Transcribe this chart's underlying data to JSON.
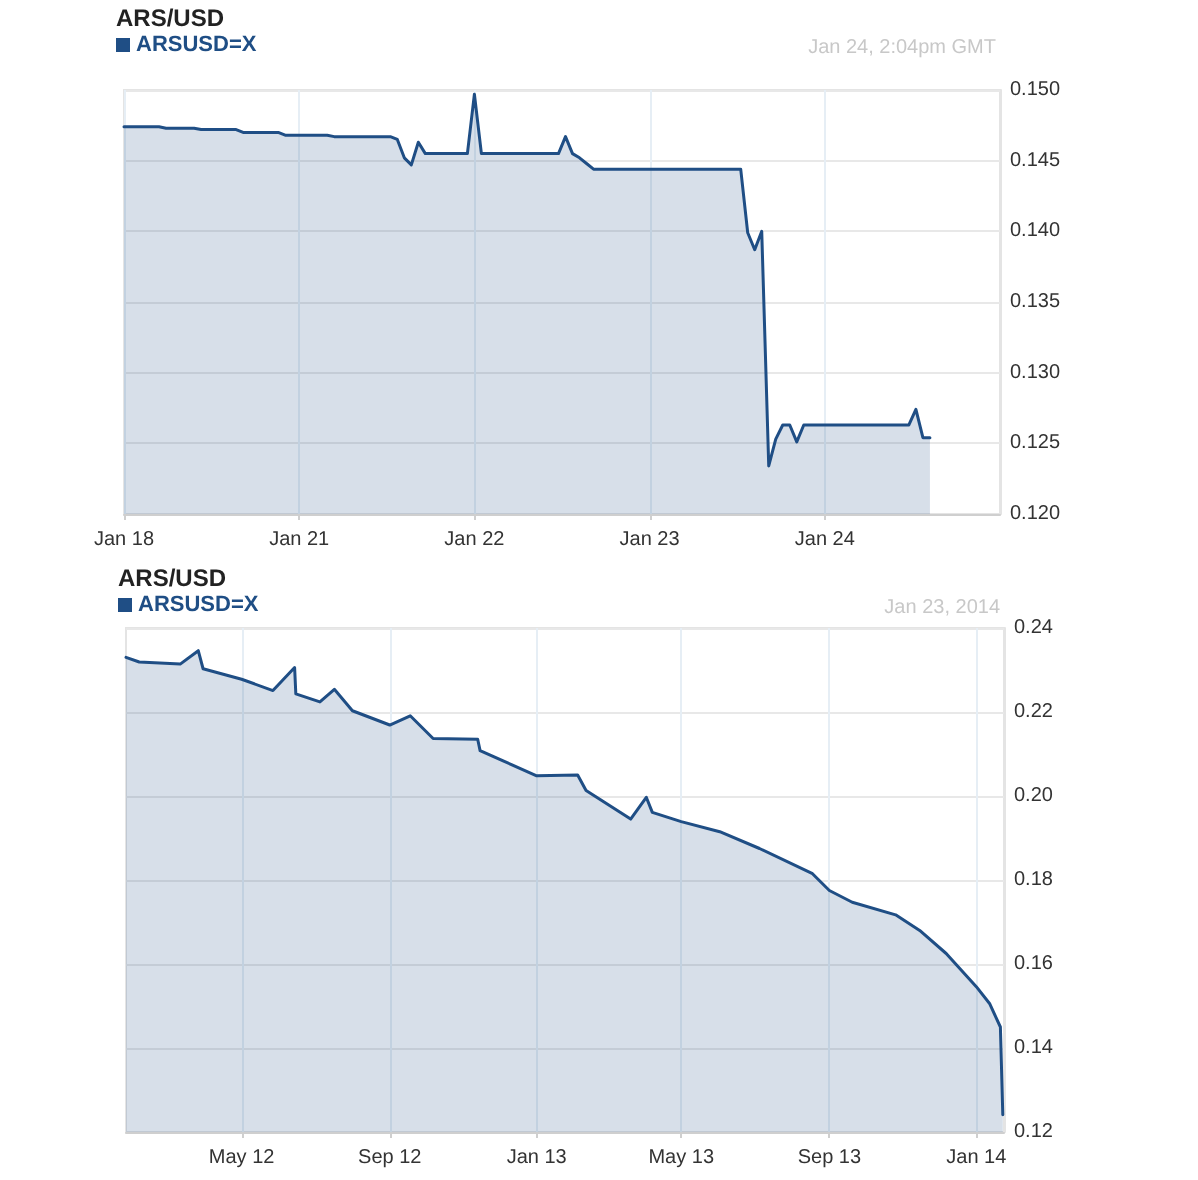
{
  "chart_data": [
    {
      "type": "area",
      "title": "ARS/USD",
      "annotations": [
        "Jan 24, 2:04pm GMT"
      ],
      "legend": "top left",
      "grid": true,
      "marker": "none",
      "line_style": "solid",
      "categories": [
        "Jan 18",
        null,
        null,
        null,
        null,
        null,
        null,
        null,
        null,
        null,
        null,
        null,
        null,
        null,
        null,
        null,
        null,
        null,
        null,
        null,
        null,
        null,
        null,
        null,
        null,
        "Jan 21",
        null,
        null,
        null,
        null,
        null,
        null,
        null,
        null,
        null,
        null,
        null,
        null,
        null,
        null,
        null,
        null,
        null,
        null,
        null,
        null,
        null,
        null,
        null,
        null,
        "Jan 22",
        null,
        null,
        null,
        null,
        null,
        null,
        null,
        null,
        null,
        null,
        null,
        null,
        null,
        null,
        null,
        null,
        null,
        null,
        null,
        null,
        null,
        null,
        null,
        null,
        "Jan 23",
        null,
        null,
        null,
        null,
        null,
        null,
        null,
        null,
        null,
        null,
        null,
        null,
        null,
        null,
        null,
        null,
        null,
        null,
        null,
        null,
        null,
        null,
        null,
        null,
        "Jan 24",
        null,
        null,
        null,
        null,
        null,
        null,
        null,
        null,
        null,
        null,
        null,
        null,
        null,
        null,
        null,
        null,
        null,
        null,
        null,
        null,
        null,
        null,
        null,
        null,
        null
      ],
      "ylim": [
        0.12,
        0.15
      ],
      "yticks": [
        {
          "value": 0.12,
          "label": "0.120"
        },
        {
          "value": 0.125,
          "label": "0.125"
        },
        {
          "value": 0.13,
          "label": "0.130"
        },
        {
          "value": 0.135,
          "label": "0.135"
        },
        {
          "value": 0.14,
          "label": "0.140"
        },
        {
          "value": 0.145,
          "label": "0.145"
        },
        {
          "value": 0.15,
          "label": "0.150"
        }
      ],
      "series": [
        {
          "name": "ARSUSD=X",
          "color": "#1f4e85",
          "values": [
            0.1474,
            0.1474,
            0.1474,
            0.1474,
            0.1474,
            0.1474,
            0.1473,
            0.1473,
            0.1473,
            0.1473,
            0.1473,
            0.1472,
            0.1472,
            0.1472,
            0.1472,
            0.1472,
            0.1472,
            0.147,
            0.147,
            0.147,
            0.147,
            0.147,
            0.147,
            0.1468,
            0.1468,
            0.1468,
            0.1468,
            0.1468,
            0.1468,
            0.1468,
            0.1467,
            0.1467,
            0.1467,
            0.1467,
            0.1467,
            0.1467,
            0.1467,
            0.1467,
            0.1467,
            0.1465,
            0.1452,
            0.1447,
            0.1463,
            0.1455,
            0.1455,
            0.1455,
            0.1455,
            0.1455,
            0.1455,
            0.1455,
            0.1497,
            0.1455,
            0.1455,
            0.1455,
            0.1455,
            0.1455,
            0.1455,
            0.1455,
            0.1455,
            0.1455,
            0.1455,
            0.1455,
            0.1455,
            0.1467,
            0.1455,
            0.1452,
            0.1448,
            0.1444,
            0.1444,
            0.1444,
            0.1444,
            0.1444,
            0.1444,
            0.1444,
            0.1444,
            0.1444,
            0.1444,
            0.1444,
            0.1444,
            0.1444,
            0.1444,
            0.1444,
            0.1444,
            0.1444,
            0.1444,
            0.1444,
            0.1444,
            0.1444,
            0.1444,
            0.1399,
            0.1387,
            0.14,
            0.1234,
            0.1253,
            0.1263,
            0.1263,
            0.1251,
            0.1263,
            0.1263,
            0.1263,
            0.1263,
            0.1263,
            0.1263,
            0.1263,
            0.1263,
            0.1263,
            0.1263,
            0.1263,
            0.1263,
            0.1263,
            0.1263,
            0.1263,
            0.1263,
            0.1274,
            0.1254,
            0.1254,
            null,
            null,
            null,
            null,
            null,
            null,
            null,
            null,
            null,
            null
          ]
        }
      ]
    },
    {
      "type": "area",
      "title": "ARS/USD",
      "annotations": [
        "Jan 23, 2014"
      ],
      "legend": "top left",
      "grid": true,
      "marker": "none",
      "line_style": "solid",
      "xlim": [
        "2012-01-26",
        "2014-01-24"
      ],
      "xticks": [
        {
          "value": "2012-05-01",
          "label": "May 12"
        },
        {
          "value": "2012-09-01",
          "label": "Sep 12"
        },
        {
          "value": "2013-01-01",
          "label": "Jan 13"
        },
        {
          "value": "2013-05-01",
          "label": "May 13"
        },
        {
          "value": "2013-09-01",
          "label": "Sep 13"
        },
        {
          "value": "2014-01-01",
          "label": "Jan 14"
        }
      ],
      "ylim": [
        0.12,
        0.24
      ],
      "yticks": [
        {
          "value": 0.12,
          "label": "0.12"
        },
        {
          "value": 0.14,
          "label": "0.14"
        },
        {
          "value": 0.16,
          "label": "0.16"
        },
        {
          "value": 0.18,
          "label": "0.18"
        },
        {
          "value": 0.2,
          "label": "0.20"
        },
        {
          "value": 0.22,
          "label": "0.22"
        },
        {
          "value": 0.24,
          "label": "0.24"
        }
      ],
      "series": [
        {
          "name": "ARSUSD=X",
          "color": "#1f4e85",
          "x": [
            "2012-01-26",
            "2012-02-06",
            "2012-03-11",
            "2012-03-26",
            "2012-03-30",
            "2012-05-01",
            "2012-05-27",
            "2012-06-14",
            "2012-06-15",
            "2012-07-05",
            "2012-07-17",
            "2012-08-01",
            "2012-09-01",
            "2012-09-18",
            "2012-10-07",
            "2012-11-13",
            "2012-11-15",
            "2013-01-01",
            "2013-02-04",
            "2013-02-11",
            "2013-03-20",
            "2013-04-02",
            "2013-04-07",
            "2013-05-01",
            "2013-06-02",
            "2013-07-05",
            "2013-08-18",
            "2013-09-01",
            "2013-09-20",
            "2013-10-26",
            "2013-11-15",
            "2013-12-07",
            "2014-01-01",
            "2014-01-12",
            "2014-01-21",
            "2014-01-23"
          ],
          "values": [
            0.233,
            0.2319,
            0.2314,
            0.2346,
            0.2303,
            0.2278,
            0.2251,
            0.2306,
            0.2243,
            0.2224,
            0.2254,
            0.2203,
            0.2169,
            0.2191,
            0.2137,
            0.2135,
            0.2108,
            0.2048,
            0.205,
            0.2013,
            0.1945,
            0.1997,
            0.1961,
            0.1939,
            0.1915,
            0.1875,
            0.1815,
            0.1775,
            0.1747,
            0.1717,
            0.168,
            0.1625,
            0.1546,
            0.1506,
            0.145,
            0.1241
          ]
        }
      ]
    }
  ]
}
